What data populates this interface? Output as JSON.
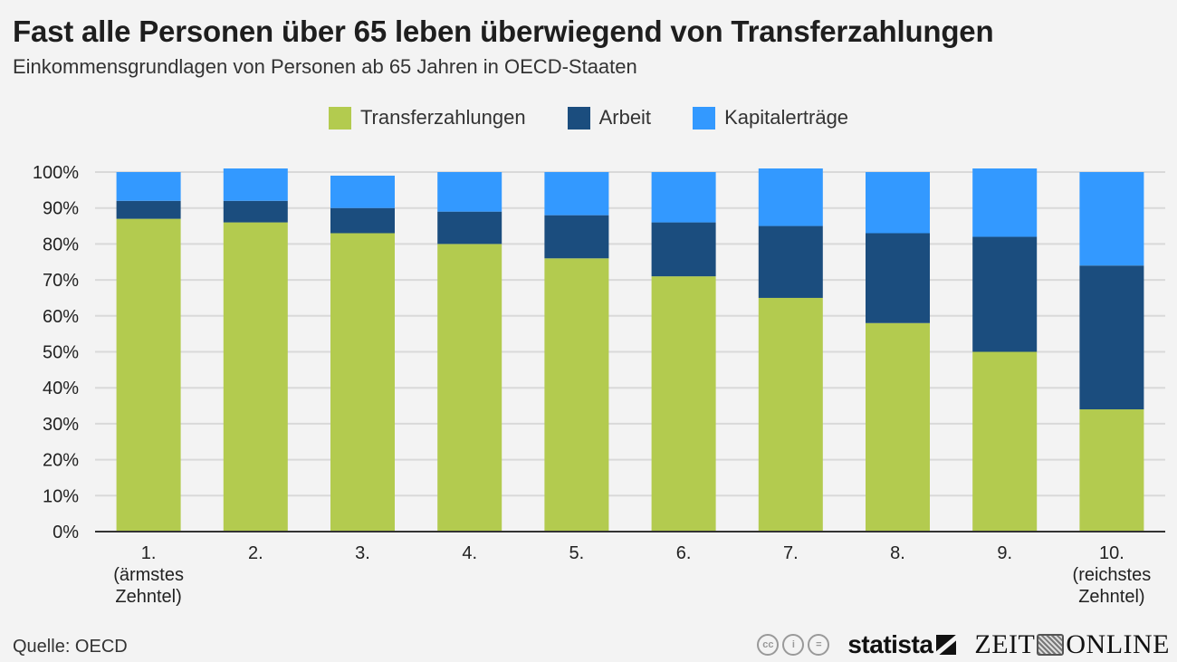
{
  "header": {
    "title": "Fast alle Personen über 65 leben überwiegend von Transferzahlungen",
    "subtitle": "Einkommensgrundlagen von Personen ab 65 Jahren in OECD-Staaten"
  },
  "legend": [
    {
      "label": "Transferzahlungen",
      "color": "#b3cb4f"
    },
    {
      "label": "Arbeit",
      "color": "#1b4d7e"
    },
    {
      "label": "Kapitalerträge",
      "color": "#3399ff"
    }
  ],
  "chart_data": {
    "type": "bar",
    "stacked": true,
    "title": "Fast alle Personen über 65 leben überwiegend von Transferzahlungen",
    "subtitle": "Einkommensgrundlagen von Personen ab 65 Jahren in OECD-Staaten",
    "xlabel": "",
    "ylabel": "",
    "ylim": [
      0,
      100
    ],
    "yticks": [
      "0%",
      "10%",
      "20%",
      "30%",
      "40%",
      "50%",
      "60%",
      "70%",
      "80%",
      "90%",
      "100%"
    ],
    "grid": true,
    "legend_position": "top-center",
    "categories": [
      [
        "1.",
        "(ärmstes",
        "Zehntel)"
      ],
      [
        "2."
      ],
      [
        "3."
      ],
      [
        "4."
      ],
      [
        "5."
      ],
      [
        "6."
      ],
      [
        "7."
      ],
      [
        "8."
      ],
      [
        "9."
      ],
      [
        "10.",
        "(reichstes",
        "Zehntel)"
      ]
    ],
    "series": [
      {
        "name": "Transferzahlungen",
        "color": "#b3cb4f",
        "values": [
          87,
          86,
          83,
          80,
          76,
          71,
          65,
          58,
          50,
          34
        ]
      },
      {
        "name": "Arbeit",
        "color": "#1b4d7e",
        "values": [
          5,
          6,
          7,
          9,
          12,
          15,
          20,
          25,
          32,
          40
        ]
      },
      {
        "name": "Kapitalerträge",
        "color": "#3399ff",
        "values": [
          8,
          9,
          9,
          11,
          12,
          14,
          16,
          17,
          19,
          26
        ]
      }
    ]
  },
  "footer": {
    "source": "Quelle: OECD",
    "license_icons": [
      "cc-icon",
      "by-icon",
      "nd-icon"
    ],
    "license_glyphs": [
      "cc",
      "i",
      "="
    ],
    "brand_statista": "statista",
    "brand_zeit_left": "ZEIT",
    "brand_zeit_right": "ONLINE"
  }
}
